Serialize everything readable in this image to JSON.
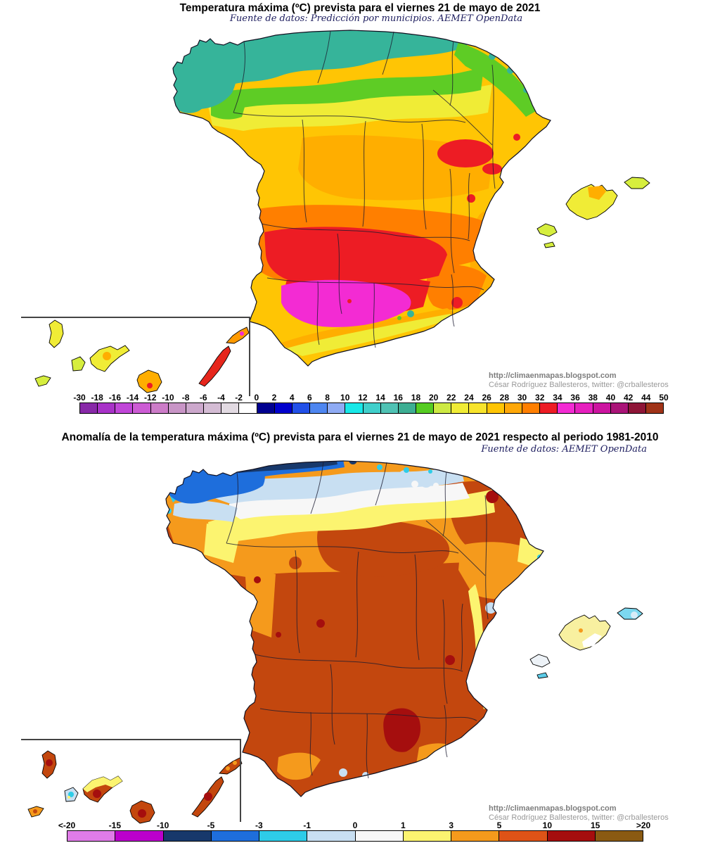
{
  "colors": {
    "background": "#ffffff",
    "province_border_line": "#1b1b30",
    "inset_box_line": "#444444"
  },
  "top_map": {
    "title": "Temperatura máxima (ºC) prevista para el viernes 21 de mayo de 2021",
    "subtitle": "Fuente de datos: Predicción por municipios. AEMET OpenData",
    "attribution": {
      "url": "http://climaenmapas.blogspot.com",
      "author": "César Rodríguez Ballesteros, twitter: @crballesteros"
    },
    "scale": {
      "unit": "ºC",
      "ticks": [
        "-30",
        "-18",
        "-16",
        "-14",
        "-12",
        "-10",
        "-8",
        "-6",
        "-4",
        "-2",
        "0",
        "2",
        "4",
        "6",
        "8",
        "10",
        "12",
        "14",
        "16",
        "18",
        "20",
        "22",
        "24",
        "26",
        "28",
        "30",
        "32",
        "34",
        "36",
        "38",
        "40",
        "42",
        "44",
        "50"
      ],
      "cell_colors": [
        "#8829A8",
        "#A832C8",
        "#C046D8",
        "#CC5CD4",
        "#CC7CC8",
        "#C895C6",
        "#CCA8CC",
        "#D4BCD4",
        "#E2DAE2",
        "#FFFFFF",
        "#000090",
        "#0000CD",
        "#2250E8",
        "#4E86F0",
        "#8FABF4",
        "#18E8E8",
        "#40CFCB",
        "#4FC2B4",
        "#3DAE93",
        "#55CC22",
        "#CDE943",
        "#F0EC36",
        "#F8E42C",
        "#FFC504",
        "#FFA808",
        "#FF7F00",
        "#ED1C24",
        "#F32BD3",
        "#E620BE",
        "#CC14A0",
        "#AA1478",
        "#8E1537",
        "#A03318"
      ]
    }
  },
  "bottom_map": {
    "title": "Anomalía de la temperatura máxima (ºC) prevista para el viernes 21 de mayo de 2021 respecto al periodo 1981-2010",
    "subtitle": "Fuente de datos: AEMET OpenData",
    "attribution": {
      "url": "http://climaenmapas.blogspot.com",
      "author": "César Rodríguez Ballesteros, twitter: @crballesteros"
    },
    "scale": {
      "unit": "ºC",
      "ticks": [
        "<-20",
        "-15",
        "-10",
        "-5",
        "-3",
        "-1",
        "0",
        "1",
        "3",
        "5",
        "10",
        "15",
        ">20"
      ],
      "cell_colors": [
        "#E07CE8",
        "#BB00CC",
        "#17386B",
        "#1E6EDC",
        "#2ECCE8",
        "#C8DFF2",
        "#F7F7F7",
        "#FCF470",
        "#F59A1C",
        "#DE5317",
        "#A50E0E",
        "#8A5A12"
      ]
    }
  }
}
